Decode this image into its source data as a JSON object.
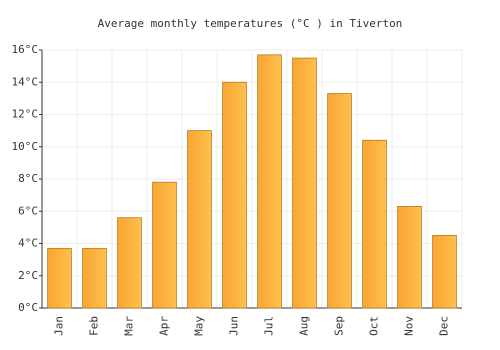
{
  "chart_data": {
    "type": "bar",
    "title": "Average monthly temperatures (°C ) in Tiverton",
    "categories": [
      "Jan",
      "Feb",
      "Mar",
      "Apr",
      "May",
      "Jun",
      "Jul",
      "Aug",
      "Sep",
      "Oct",
      "Nov",
      "Dec"
    ],
    "values": [
      3.7,
      3.7,
      5.6,
      7.8,
      11.0,
      14.0,
      15.7,
      15.5,
      13.3,
      10.4,
      6.3,
      4.5
    ],
    "color": "#f9a533",
    "ylim": [
      0,
      16
    ],
    "yticks": [
      {
        "value": 0,
        "label": "0°C"
      },
      {
        "value": 2,
        "label": "2°C"
      },
      {
        "value": 4,
        "label": "4°C"
      },
      {
        "value": 6,
        "label": "6°C"
      },
      {
        "value": 8,
        "label": "8°C"
      },
      {
        "value": 10,
        "label": "10°C"
      },
      {
        "value": 12,
        "label": "12°C"
      },
      {
        "value": 14,
        "label": "14°C"
      },
      {
        "value": 16,
        "label": "16°C"
      }
    ],
    "grid": true
  }
}
